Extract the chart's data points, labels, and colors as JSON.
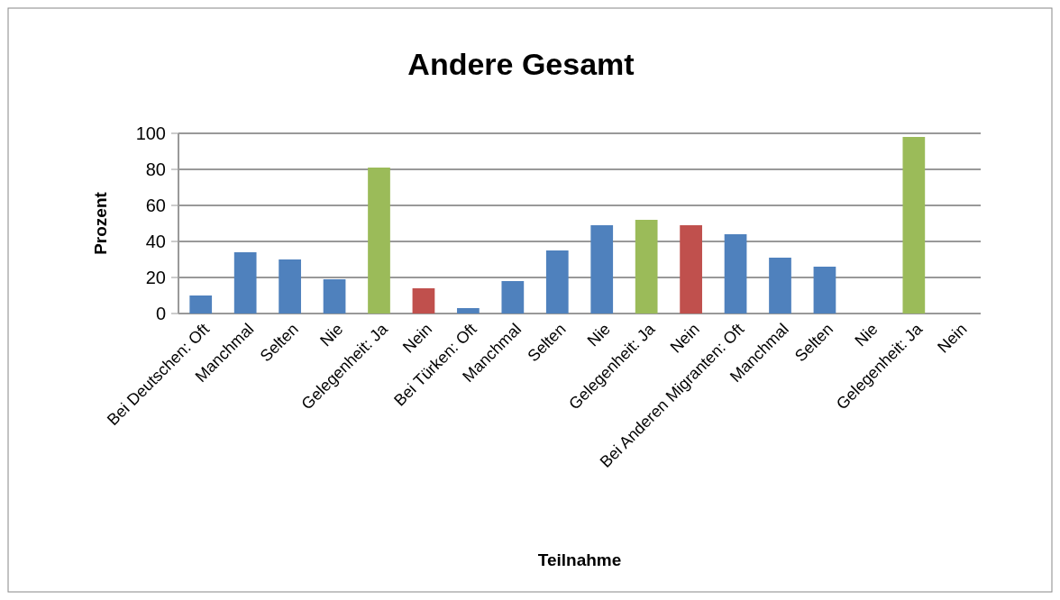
{
  "chart_data": {
    "type": "bar",
    "title": "Andere Gesamt",
    "xlabel": "Teilnahme",
    "ylabel": "Prozent",
    "categories": [
      "Bei Deutschen: Oft",
      "Manchmal",
      "Selten",
      "Nie",
      "Gelegenheit: Ja",
      "Nein",
      "Bei Türken: Oft",
      "Manchmal",
      "Selten",
      "Nie",
      "Gelegenheit: Ja",
      "Nein",
      "Bei Anderen Migranten: Oft",
      "Manchmal",
      "Selten",
      "Nie",
      "Gelegenheit: Ja",
      "Nein"
    ],
    "values": [
      10,
      34,
      30,
      19,
      81,
      14,
      3,
      18,
      35,
      49,
      52,
      49,
      44,
      31,
      26,
      0,
      98,
      0
    ],
    "colors": [
      "#4f81bd",
      "#4f81bd",
      "#4f81bd",
      "#4f81bd",
      "#9bbb59",
      "#c0504d",
      "#4f81bd",
      "#4f81bd",
      "#4f81bd",
      "#4f81bd",
      "#9bbb59",
      "#c0504d",
      "#4f81bd",
      "#4f81bd",
      "#4f81bd",
      "#4f81bd",
      "#9bbb59",
      "#c0504d"
    ],
    "ylim": [
      0,
      100
    ],
    "yticks": [
      0,
      20,
      40,
      60,
      80,
      100
    ],
    "grid": "y"
  }
}
